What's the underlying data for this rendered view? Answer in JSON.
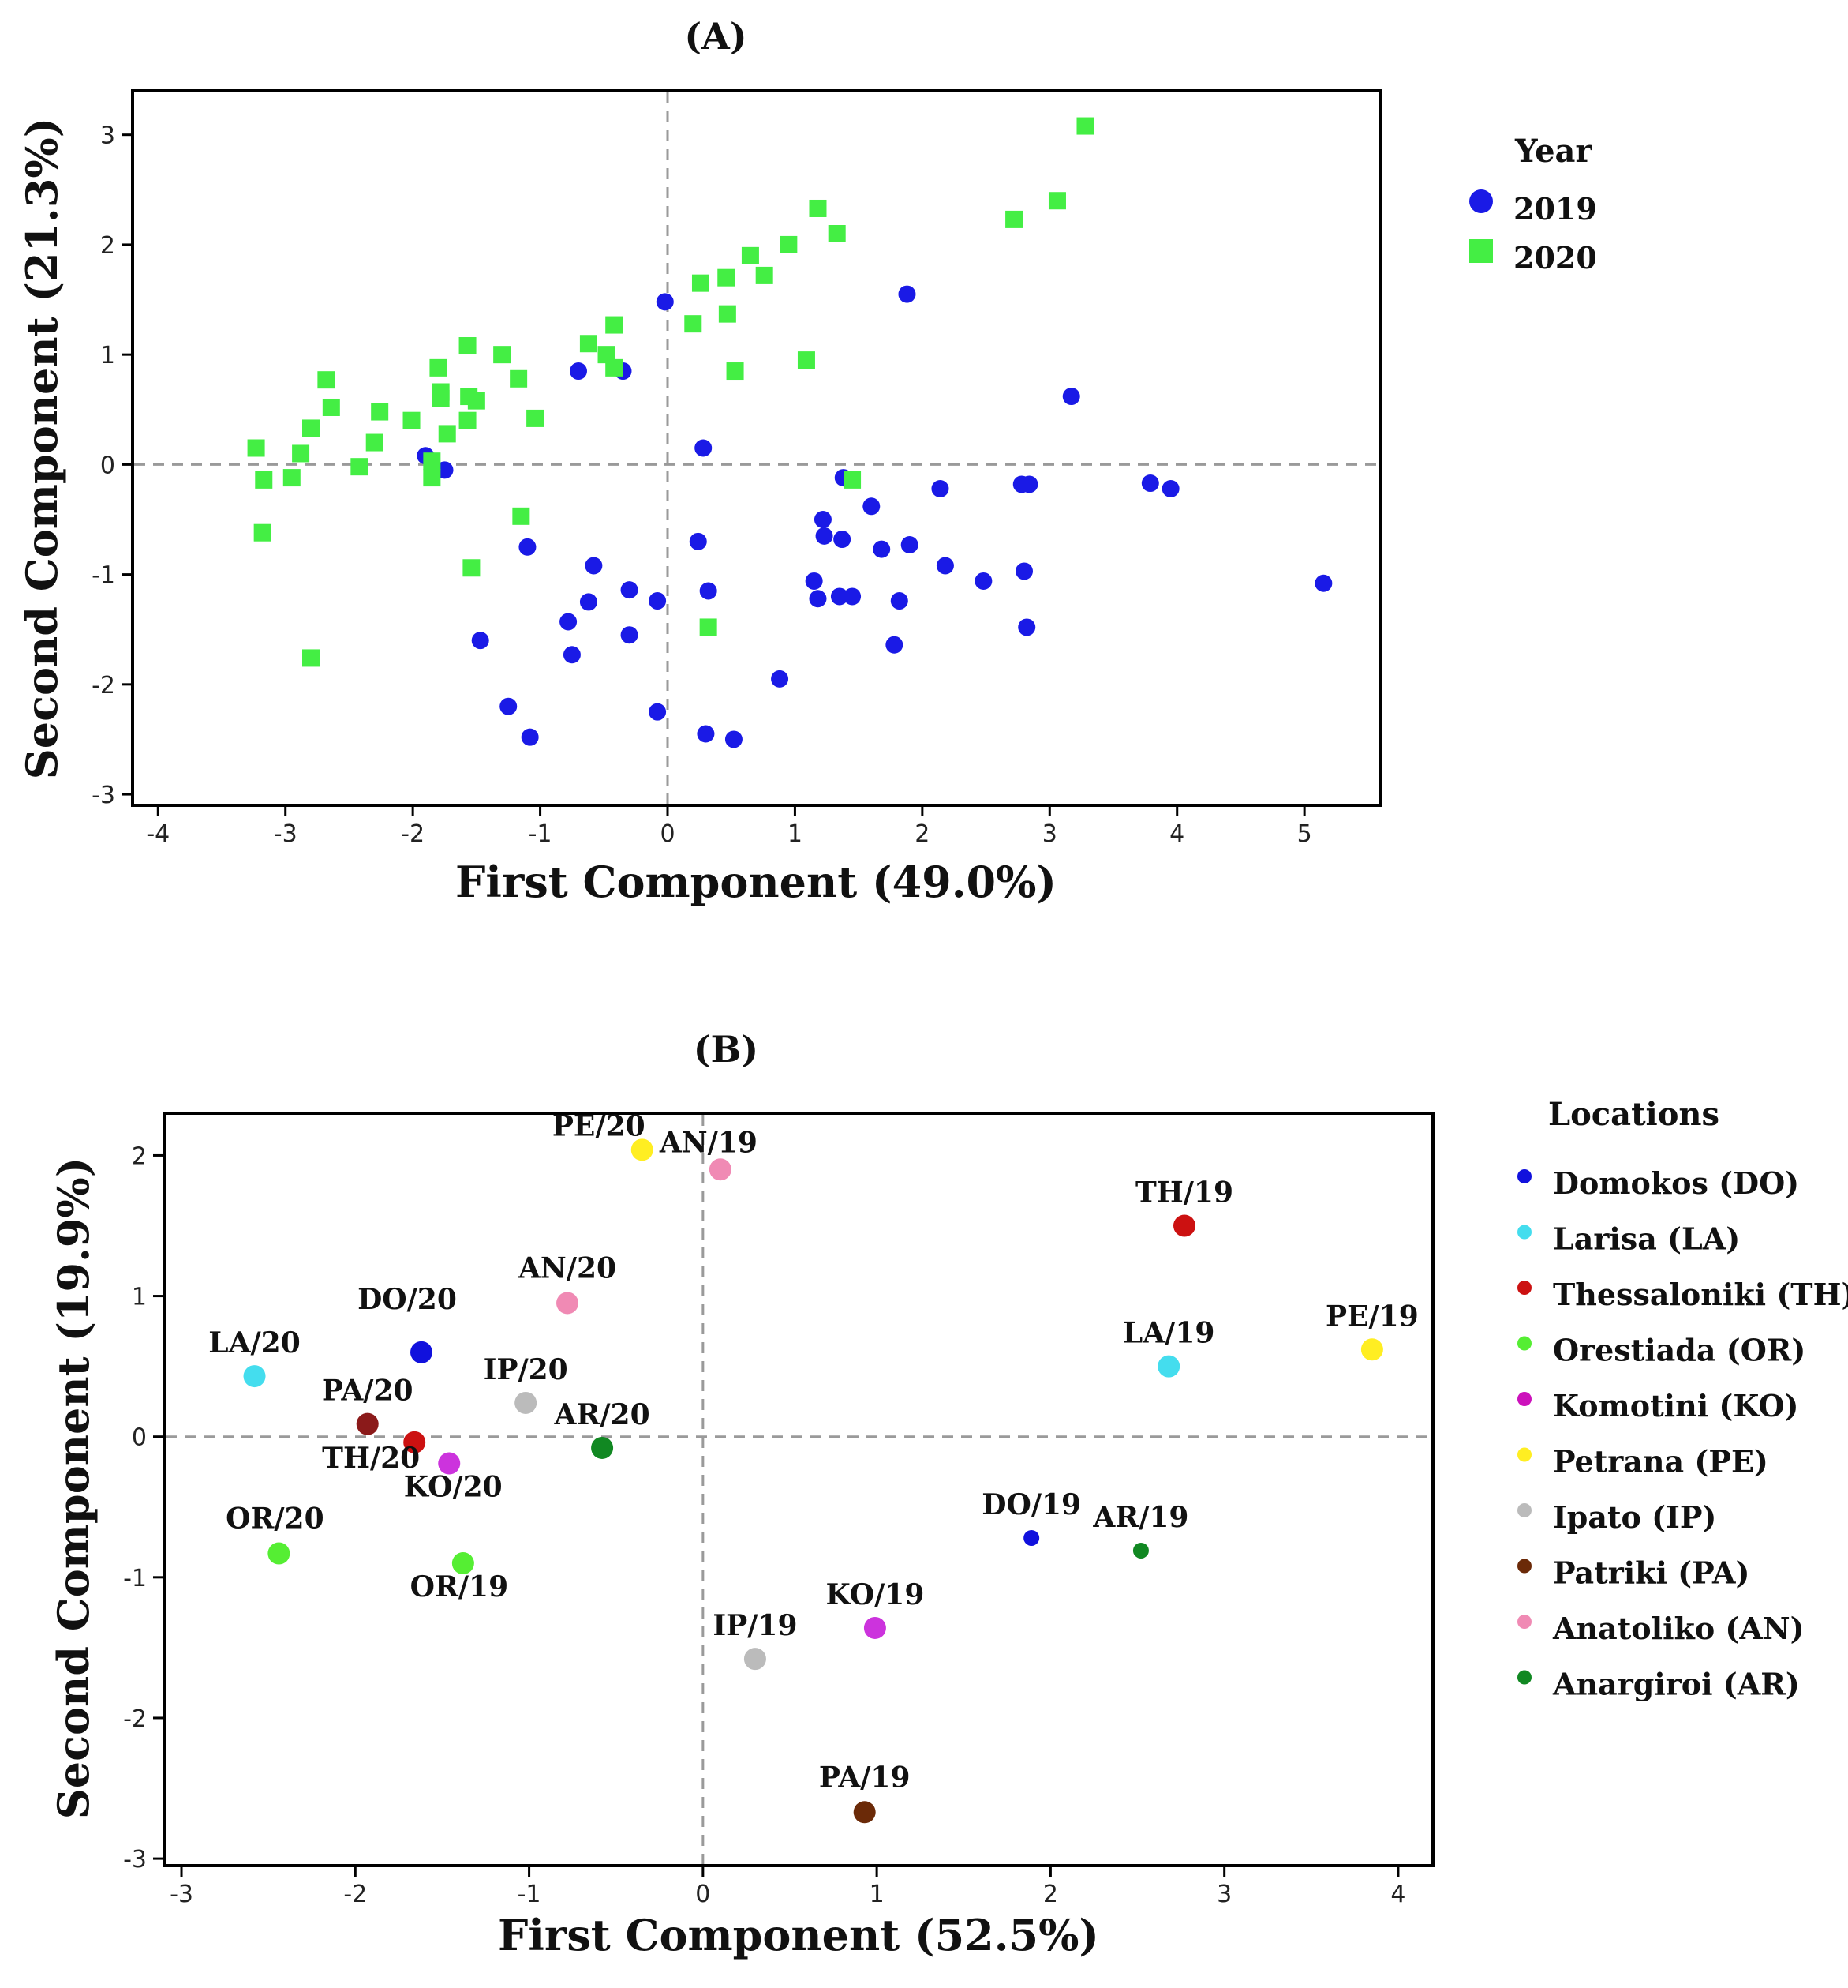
{
  "chart_data": [
    {
      "type": "scatter",
      "title": "(A)",
      "xlabel": "First Component (49.0%)",
      "ylabel": "Second Component (21.3%)",
      "xlim": [
        -4.2,
        5.6
      ],
      "ylim": [
        -3.1,
        3.4
      ],
      "xticks": [
        -4,
        -3,
        -2,
        -1,
        0,
        1,
        2,
        3,
        4,
        5
      ],
      "yticks": [
        -3,
        -2,
        -1,
        0,
        1,
        2,
        3
      ],
      "ref_lines": {
        "x": 0,
        "y": 0
      },
      "legend": {
        "title": "Year",
        "position": "right",
        "entries": [
          {
            "label": "2019",
            "marker": "circle",
            "color": "#1a1ae6"
          },
          {
            "label": "2020",
            "marker": "square",
            "color": "#44ee44"
          }
        ]
      },
      "series": [
        {
          "name": "2019",
          "marker": "circle",
          "color": "#1a1ae6",
          "points": [
            [
              -1.9,
              0.08
            ],
            [
              -1.75,
              -0.05
            ],
            [
              -0.7,
              0.85
            ],
            [
              -0.35,
              0.85
            ],
            [
              -0.02,
              1.48
            ],
            [
              1.88,
              1.55
            ],
            [
              3.17,
              0.62
            ],
            [
              0.28,
              0.15
            ],
            [
              1.38,
              -0.12
            ],
            [
              2.78,
              -0.18
            ],
            [
              2.84,
              -0.18
            ],
            [
              3.79,
              -0.17
            ],
            [
              3.95,
              -0.22
            ],
            [
              2.14,
              -0.22
            ],
            [
              1.6,
              -0.38
            ],
            [
              1.22,
              -0.5
            ],
            [
              1.23,
              -0.65
            ],
            [
              1.37,
              -0.68
            ],
            [
              1.68,
              -0.77
            ],
            [
              1.9,
              -0.73
            ],
            [
              -1.1,
              -0.75
            ],
            [
              0.24,
              -0.7
            ],
            [
              -0.58,
              -0.92
            ],
            [
              2.18,
              -0.92
            ],
            [
              2.8,
              -0.97
            ],
            [
              2.48,
              -1.06
            ],
            [
              1.15,
              -1.06
            ],
            [
              5.15,
              -1.08
            ],
            [
              -0.3,
              -1.14
            ],
            [
              0.32,
              -1.15
            ],
            [
              -0.08,
              -1.24
            ],
            [
              -0.62,
              -1.25
            ],
            [
              1.18,
              -1.22
            ],
            [
              1.35,
              -1.2
            ],
            [
              1.45,
              -1.2
            ],
            [
              1.82,
              -1.24
            ],
            [
              -0.78,
              -1.43
            ],
            [
              -0.3,
              -1.55
            ],
            [
              -1.47,
              -1.6
            ],
            [
              2.82,
              -1.48
            ],
            [
              -0.75,
              -1.73
            ],
            [
              1.78,
              -1.64
            ],
            [
              0.88,
              -1.95
            ],
            [
              -1.25,
              -2.2
            ],
            [
              -0.08,
              -2.25
            ],
            [
              0.3,
              -2.45
            ],
            [
              0.52,
              -2.5
            ],
            [
              -1.08,
              -2.48
            ]
          ]
        },
        {
          "name": "2020",
          "marker": "square",
          "color": "#44ee44",
          "points": [
            [
              3.28,
              3.08
            ],
            [
              3.06,
              2.4
            ],
            [
              2.72,
              2.23
            ],
            [
              1.18,
              2.33
            ],
            [
              1.33,
              2.1
            ],
            [
              0.95,
              2.0
            ],
            [
              0.65,
              1.9
            ],
            [
              0.76,
              1.72
            ],
            [
              0.46,
              1.7
            ],
            [
              0.26,
              1.65
            ],
            [
              0.47,
              1.37
            ],
            [
              0.2,
              1.28
            ],
            [
              -0.42,
              1.27
            ],
            [
              -0.62,
              1.1
            ],
            [
              -0.48,
              1.0
            ],
            [
              -0.42,
              0.88
            ],
            [
              0.53,
              0.85
            ],
            [
              1.09,
              0.95
            ],
            [
              -1.57,
              1.08
            ],
            [
              -1.3,
              1.0
            ],
            [
              -1.8,
              0.88
            ],
            [
              -1.17,
              0.78
            ],
            [
              -2.68,
              0.77
            ],
            [
              -1.78,
              0.66
            ],
            [
              -1.56,
              0.62
            ],
            [
              -1.78,
              0.6
            ],
            [
              -1.5,
              0.58
            ],
            [
              -2.64,
              0.52
            ],
            [
              -2.26,
              0.48
            ],
            [
              -1.04,
              0.42
            ],
            [
              -2.01,
              0.4
            ],
            [
              -1.57,
              0.4
            ],
            [
              -1.73,
              0.28
            ],
            [
              -2.8,
              0.33
            ],
            [
              -2.3,
              0.2
            ],
            [
              -3.23,
              0.15
            ],
            [
              -2.88,
              0.1
            ],
            [
              -1.85,
              0.03
            ],
            [
              -2.42,
              -0.02
            ],
            [
              -3.17,
              -0.14
            ],
            [
              -2.95,
              -0.12
            ],
            [
              -1.85,
              -0.12
            ],
            [
              1.45,
              -0.14
            ],
            [
              -1.15,
              -0.47
            ],
            [
              -3.18,
              -0.62
            ],
            [
              -1.54,
              -0.94
            ],
            [
              -2.8,
              -1.76
            ],
            [
              0.32,
              -1.48
            ]
          ]
        }
      ]
    },
    {
      "type": "scatter",
      "title": "(B)",
      "xlabel": "First Component (52.5%)",
      "ylabel": "Second Component (19.9%)",
      "xlim": [
        -3.1,
        4.2
      ],
      "ylim": [
        -3.05,
        2.3
      ],
      "xticks": [
        -3,
        -2,
        -1,
        0,
        1,
        2,
        3,
        4
      ],
      "yticks": [
        -3,
        -2,
        -1,
        0,
        1,
        2
      ],
      "ref_lines": {
        "x": 0,
        "y": 0
      },
      "legend": {
        "title": "Locations",
        "position": "right",
        "entries": [
          {
            "label": "Domokos (DO)",
            "color": "#1111dd"
          },
          {
            "label": "Larisa (LA)",
            "color": "#44ddee"
          },
          {
            "label": "Thessaloniki (TH)",
            "color": "#cc1111"
          },
          {
            "label": "Orestiada (OR)",
            "color": "#55ee33"
          },
          {
            "label": "Komotini (KO)",
            "color": "#cc11bb"
          },
          {
            "label": "Petrana (PE)",
            "color": "#ffee22"
          },
          {
            "label": "Ipato (IP)",
            "color": "#bbbbbb"
          },
          {
            "label": "Patriki (PA)",
            "color": "#6b2a08"
          },
          {
            "label": "Anatoliko (AN)",
            "color": "#f08ab4"
          },
          {
            "label": "Anargiroi (AR)",
            "color": "#118822"
          }
        ]
      },
      "points": [
        {
          "label": "PE/20",
          "x": -0.35,
          "y": 2.04,
          "color": "#ffee22",
          "size": "large"
        },
        {
          "label": "AN/19",
          "x": 0.1,
          "y": 1.9,
          "color": "#f08ab4",
          "size": "large"
        },
        {
          "label": "TH/19",
          "x": 2.77,
          "y": 1.5,
          "color": "#cc1111",
          "size": "large"
        },
        {
          "label": "AN/20",
          "x": -0.78,
          "y": 0.95,
          "color": "#f08ab4",
          "size": "large"
        },
        {
          "label": "DO/20",
          "x": -1.62,
          "y": 0.6,
          "color": "#1111dd",
          "size": "large"
        },
        {
          "label": "LA/20",
          "x": -2.58,
          "y": 0.43,
          "color": "#44ddee",
          "size": "large"
        },
        {
          "label": "LA/19",
          "x": 2.68,
          "y": 0.5,
          "color": "#44ddee",
          "size": "large"
        },
        {
          "label": "PE/19",
          "x": 3.85,
          "y": 0.62,
          "color": "#ffee22",
          "size": "large"
        },
        {
          "label": "IP/20",
          "x": -1.02,
          "y": 0.24,
          "color": "#bbbbbb",
          "size": "large"
        },
        {
          "label": "PA/20",
          "x": -1.93,
          "y": 0.09,
          "color": "#8b1a1a",
          "size": "large"
        },
        {
          "label": "AR/20",
          "x": -0.58,
          "y": -0.08,
          "color": "#118822",
          "size": "large"
        },
        {
          "label": "TH/20",
          "x": -1.66,
          "y": -0.04,
          "color": "#cc1111",
          "size": "large"
        },
        {
          "label": "KO/20",
          "x": -1.46,
          "y": -0.19,
          "color": "#cc33dd",
          "size": "large"
        },
        {
          "label": "OR/20",
          "x": -2.44,
          "y": -0.83,
          "color": "#55ee33",
          "size": "large"
        },
        {
          "label": "OR/19",
          "x": -1.38,
          "y": -0.9,
          "color": "#55ee33",
          "size": "large"
        },
        {
          "label": "DO/19",
          "x": 1.89,
          "y": -0.72,
          "color": "#1111dd",
          "size": "small"
        },
        {
          "label": "AR/19",
          "x": 2.52,
          "y": -0.81,
          "color": "#118822",
          "size": "small"
        },
        {
          "label": "KO/19",
          "x": 0.99,
          "y": -1.36,
          "color": "#cc33dd",
          "size": "large"
        },
        {
          "label": "IP/19",
          "x": 0.3,
          "y": -1.58,
          "color": "#bbbbbb",
          "size": "large"
        },
        {
          "label": "PA/19",
          "x": 0.93,
          "y": -2.67,
          "color": "#6b2a08",
          "size": "large"
        }
      ]
    }
  ]
}
